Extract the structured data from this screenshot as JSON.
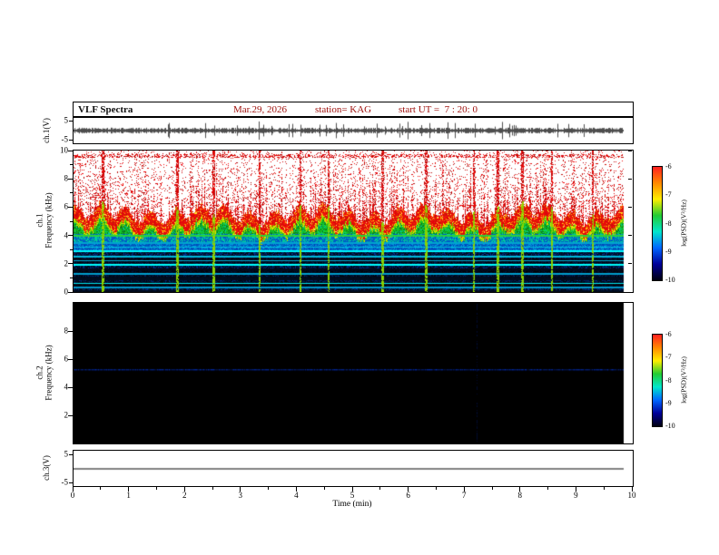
{
  "header": {
    "title": "VLF Spectra",
    "date": "Mar.29, 2026",
    "station": "station= KAG",
    "start_ut": "start UT =  7 : 20: 0"
  },
  "axes": {
    "xlabel": "Time (min)",
    "x_ticks": [
      "0",
      "1",
      "2",
      "3",
      "4",
      "5",
      "6",
      "7",
      "8",
      "9",
      "10"
    ],
    "ch1v": {
      "label": "ch.1(V)",
      "ticks": [
        "5",
        "-5"
      ]
    },
    "ch1spec": {
      "label_line1": "ch.1",
      "label_line2": "Frequency (kHz)",
      "ticks": [
        "10",
        "8",
        "6",
        "4",
        "2",
        "0"
      ]
    },
    "ch2spec": {
      "label_line1": "ch.2",
      "label_line2": "Frequency (kHz)",
      "ticks": [
        "8",
        "6",
        "4",
        "2"
      ]
    },
    "ch3v": {
      "label": "ch.3(V)",
      "ticks": [
        "5",
        "-5"
      ]
    }
  },
  "colorbar": {
    "label": "log(PSD)(V²/Hz)",
    "ticks": [
      "-6",
      "-7",
      "-8",
      "-9",
      "-10"
    ],
    "colors": [
      "#ff2020",
      "#ff8800",
      "#ffee00",
      "#22cc33",
      "#00e6cc",
      "#0066ff",
      "#000099",
      "#000011"
    ]
  },
  "chart_data": [
    {
      "type": "line",
      "panel": "ch1_voltage",
      "ylabel": "ch.1(V)",
      "ylim": [
        -5,
        5
      ],
      "xlim": [
        0,
        10
      ],
      "description": "broadband noise centered on 0 V, typical amplitude about ±1 V with occasional spikes to ±3 V",
      "noise_amp_v": 1.0,
      "spike_prob": 0.06
    },
    {
      "type": "heatmap",
      "panel": "ch1_spectrogram",
      "ylabel": "ch.1 Frequency (kHz)",
      "ylim": [
        0,
        10
      ],
      "xlim": [
        0,
        10
      ],
      "colorbar_range_log_psd": [
        -10,
        -6
      ],
      "data_end_min": 9.83,
      "bands": [
        {
          "f_khz": [
            6.2,
            10
          ],
          "level_log_psd": -6.8,
          "appearance": "white background with dense red sferic streaks, persistent red speckle line near 9.6 kHz"
        },
        {
          "f_khz": [
            4.7,
            6.2
          ],
          "level_log_psd": -6.2,
          "appearance": "saturated red band with fluctuating jagged upper edge"
        },
        {
          "f_khz": [
            4.3,
            4.7
          ],
          "level_log_psd": -7.3,
          "appearance": "yellow-green transition band"
        },
        {
          "f_khz": [
            3.4,
            4.3
          ],
          "level_log_psd": -8.0,
          "appearance": "green to cyan"
        },
        {
          "f_khz": [
            2.85,
            3.4
          ],
          "level_log_psd": -8.8,
          "appearance": "blue"
        },
        {
          "f_khz": [
            0,
            2.85
          ],
          "level_log_psd": -9.6,
          "appearance": "dark navy to black with bright cyan horizontal harmonic lines"
        }
      ],
      "horizontal_lines_khz": [
        0.35,
        0.65,
        0.95,
        1.3,
        1.6,
        1.95,
        2.25,
        2.55,
        2.9,
        3.2,
        3.5,
        4.0
      ],
      "vertical_event_times_min": [
        0.52,
        1.85,
        2.5,
        3.32,
        4.05,
        4.55,
        5.52,
        6.3,
        7.15,
        7.58,
        8.02,
        8.55,
        9.28
      ]
    },
    {
      "type": "heatmap",
      "panel": "ch2_spectrogram",
      "ylabel": "ch.2 Frequency (kHz)",
      "ylim": [
        0,
        10
      ],
      "xlim": [
        0,
        10
      ],
      "colorbar_range_log_psd": [
        -10,
        -6
      ],
      "data_end_min": 9.83,
      "background_level_log_psd": -10,
      "appearance": "uniformly black (at or below -10) with one faint dark-blue horizontal line",
      "horizontal_lines_khz": [
        5.3
      ],
      "vertical_event_times_min": [
        7.2
      ]
    },
    {
      "type": "line",
      "panel": "ch3_voltage",
      "ylabel": "ch.3(V)",
      "ylim": [
        -5,
        5
      ],
      "xlim": [
        0,
        10
      ],
      "description": "flat line at 0 V",
      "value_v": 0
    }
  ]
}
